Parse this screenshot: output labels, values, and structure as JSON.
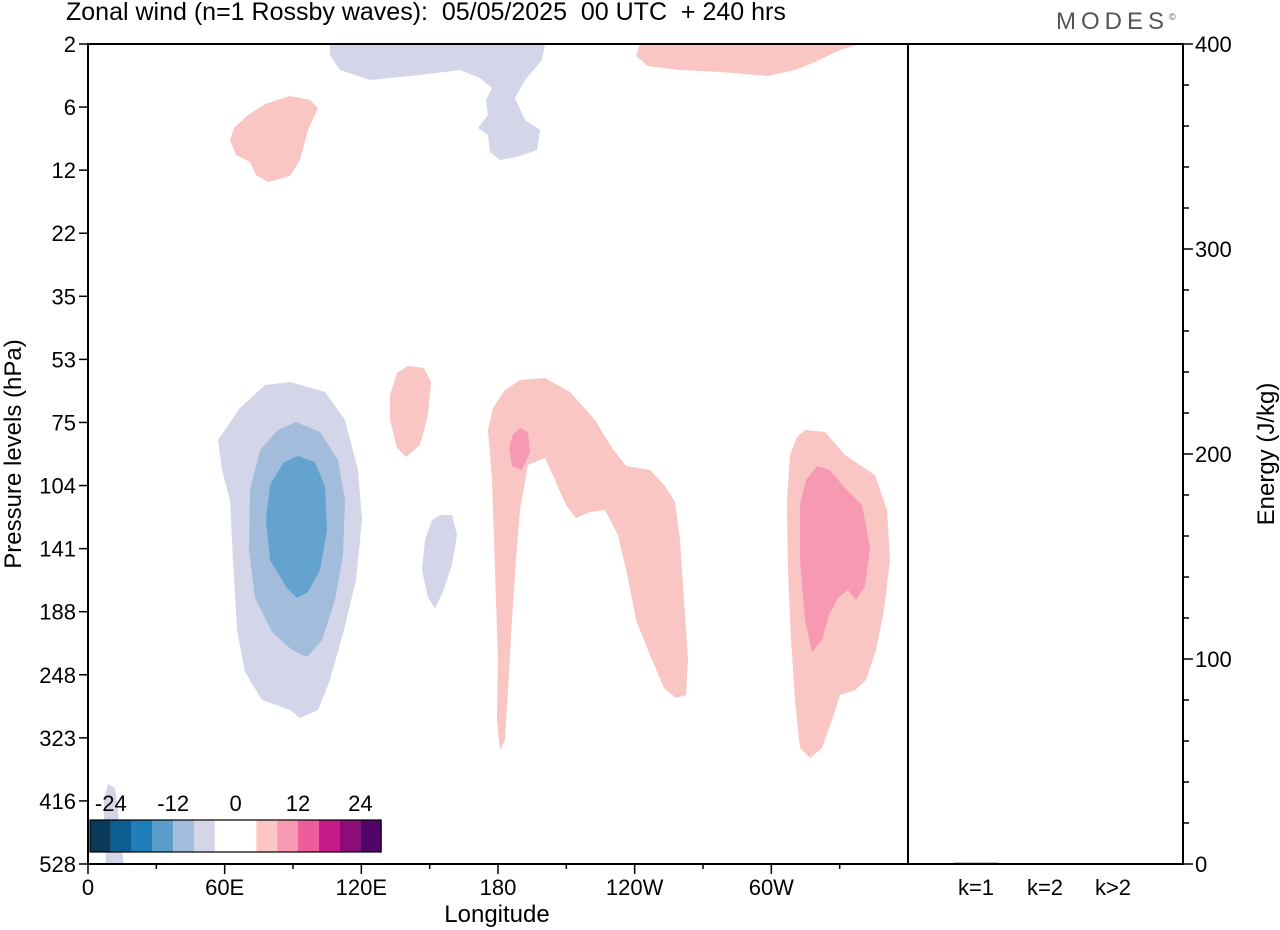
{
  "header": {
    "title": "Zonal wind (n=1 Rossby waves):  05/05/2025  00 UTC  + 240 hrs"
  },
  "brand": {
    "logo_text": "MODES",
    "logo_mark": "©"
  },
  "chart_data": [
    {
      "type": "heatmap",
      "title": "Zonal wind (n=1 Rossby waves):  05/05/2025  00 UTC  + 240 hrs",
      "xlabel": "Longitude",
      "ylabel": "Pressure levels (hPa)",
      "x_tick_labels": [
        "0",
        "60E",
        "120E",
        "180",
        "120W",
        "60W"
      ],
      "x_ticks_deg_east": [
        0,
        60,
        120,
        180,
        240,
        300
      ],
      "xlim_deg_east": [
        0,
        360
      ],
      "y_tick_labels": [
        "2",
        "6",
        "12",
        "22",
        "35",
        "53",
        "75",
        "104",
        "141",
        "188",
        "248",
        "323",
        "416",
        "528"
      ],
      "y_ticks_hpa": [
        2,
        6,
        12,
        22,
        35,
        53,
        75,
        104,
        141,
        188,
        248,
        323,
        416,
        528
      ],
      "ylim_hpa": [
        2,
        528
      ],
      "colorbar": {
        "tick_labels": [
          "-24",
          "-12",
          "0",
          "12",
          "24"
        ],
        "ticks": [
          -24,
          -12,
          0,
          12,
          24
        ],
        "colors": [
          "#0a3a5a",
          "#0d5e93",
          "#1f7fb8",
          "#5b9ecb",
          "#a3bcdb",
          "#d4d6e8",
          "#ffffff",
          "#ffffff",
          "#fbc6c3",
          "#f899b3",
          "#ef5c9c",
          "#c61a8a",
          "#8e0b7a",
          "#520468"
        ]
      },
      "contour_levels": [
        -12,
        -8,
        -4,
        4,
        8,
        12
      ],
      "features": [
        {
          "sign": "negative",
          "level": -12,
          "lon_deg_east": 93,
          "pressure_hpa": 130
        },
        {
          "sign": "negative",
          "level": -8,
          "lon_deg_east": 93,
          "pressure_hpa": 140
        },
        {
          "sign": "negative",
          "level": -4,
          "lon_deg_east": 95,
          "pressure_hpa": 130
        },
        {
          "sign": "negative",
          "level": -4,
          "lon_deg_east": 152,
          "pressure_hpa": 150
        },
        {
          "sign": "negative",
          "level": -4,
          "lon_deg_east": 185,
          "pressure_hpa": 5
        },
        {
          "sign": "negative",
          "level": -4,
          "lon_deg_east": 12,
          "pressure_hpa": 480
        },
        {
          "sign": "positive",
          "level": 4,
          "lon_deg_east": 47,
          "pressure_hpa": 8
        },
        {
          "sign": "positive",
          "level": 4,
          "lon_deg_east": 245,
          "pressure_hpa": 3
        },
        {
          "sign": "positive",
          "level": 4,
          "lon_deg_east": 142,
          "pressure_hpa": 75
        },
        {
          "sign": "positive",
          "level": 4,
          "lon_deg_east": 215,
          "pressure_hpa": 130
        },
        {
          "sign": "positive",
          "level": 8,
          "lon_deg_east": 188,
          "pressure_hpa": 90
        },
        {
          "sign": "positive",
          "level": 4,
          "lon_deg_east": 322,
          "pressure_hpa": 170
        },
        {
          "sign": "positive",
          "level": 8,
          "lon_deg_east": 322,
          "pressure_hpa": 135
        }
      ]
    },
    {
      "type": "bar",
      "ylabel": "Energy (J/kg)",
      "categories": [
        "k=1",
        "k=2",
        "k>2"
      ],
      "values": [
        0.6,
        0.3,
        0.3
      ],
      "ylim": [
        0,
        400
      ],
      "y_tick_labels": [
        "0",
        "100",
        "200",
        "300",
        "400"
      ],
      "y_ticks": [
        0,
        100,
        200,
        300,
        400
      ]
    }
  ]
}
